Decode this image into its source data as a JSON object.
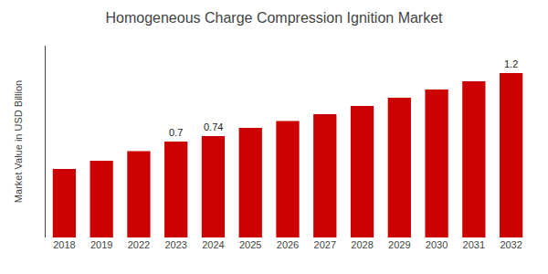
{
  "chart_data": {
    "type": "bar",
    "title": "Homogeneous Charge Compression Ignition Market",
    "ylabel": "Market Value in USD Billion",
    "categories": [
      "2018",
      "2019",
      "2022",
      "2023",
      "2024",
      "2025",
      "2026",
      "2027",
      "2028",
      "2029",
      "2030",
      "2031",
      "2032"
    ],
    "values": [
      0.5,
      0.56,
      0.63,
      0.7,
      0.74,
      0.8,
      0.85,
      0.9,
      0.96,
      1.02,
      1.08,
      1.14,
      1.2
    ],
    "color": "#cc0000",
    "annotations": [
      {
        "category": "2023",
        "text": "0.7"
      },
      {
        "category": "2024",
        "text": "0.74"
      },
      {
        "category": "2032",
        "text": "1.2"
      }
    ],
    "ylim": [
      0,
      1.4
    ],
    "tick_labels": "x",
    "grid": false
  }
}
